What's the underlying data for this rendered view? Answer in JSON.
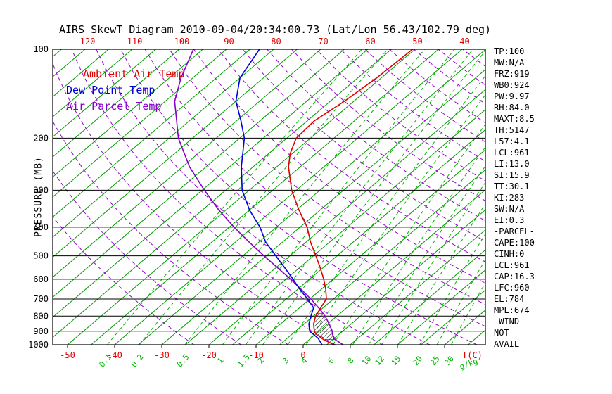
{
  "title": "AIRS SkewT Diagram 2010-09-04/20:34:00.73 (Lat/Lon 56.43/102.79 deg)",
  "legend": {
    "ambient": "Ambient Air Temp",
    "dew": "Dew Point Temp",
    "parcel": "Air Parcel Temp"
  },
  "axes": {
    "pressure_label": "PRESSURE (MB)",
    "pressure_ticks": [
      100,
      200,
      300,
      400,
      500,
      600,
      700,
      800,
      900,
      1000
    ],
    "top_temp_ticks": [
      -120,
      -110,
      -100,
      -90,
      -80,
      -70,
      -60,
      -50,
      -40
    ],
    "bottom_temp_ticks": [
      -50,
      -40,
      -30,
      -20,
      -10,
      0
    ],
    "temp_unit_label": "T(C)",
    "mixing_unit_label": "g/kg"
  },
  "stats": [
    "TP:100",
    "MW:N/A",
    "FRZ:919",
    "WB0:924",
    "PW:9.97",
    "RH:84.0",
    "MAXT:8.5",
    "TH:5147",
    "L57:4.1",
    "LCL:961",
    "LI:13.0",
    "SI:15.9",
    "TT:30.1",
    "KI:283",
    "SW:N/A",
    "EI:0.3",
    "-PARCEL-",
    "CAPE:100",
    "CINH:0",
    "LCL:961",
    "CAP:16.3",
    "LFC:960",
    "EL:784",
    "MPL:674",
    "-WIND-",
    "NOT",
    "AVAIL"
  ],
  "colors": {
    "ambient": "#dd0000",
    "dew": "#0000dd",
    "parcel": "#8800cc",
    "isotherm": "#009c00",
    "mixing": "#00b400",
    "dry_adiabat": "#9400d3",
    "frame": "#000000"
  },
  "chart_data": {
    "type": "line",
    "title": "AIRS SkewT Diagram 2010-09-04/20:34:00.73 (Lat/Lon 56.43/102.79 deg)",
    "y_axis": {
      "label": "PRESSURE (MB)",
      "scale": "log",
      "range": [
        1000,
        100
      ]
    },
    "x_axis": {
      "label": "T(C)",
      "skewed": true,
      "surface_range_C": [
        -53,
        38
      ]
    },
    "isotherm_step_C": 5,
    "dry_adiabat_theta_K": {
      "min": 250,
      "max": 460,
      "step": 10
    },
    "mixing_ratio_lines_g_kg": [
      0.1,
      0.2,
      0.5,
      1,
      1.5,
      2,
      3,
      4,
      6,
      8,
      10,
      12,
      15,
      20,
      25,
      30
    ],
    "cape_hatch_p_range": [
      961,
      784
    ],
    "series": [
      {
        "key": "ambient",
        "name": "Ambient Air Temp",
        "points_p_T": [
          [
            1000,
            6.5
          ],
          [
            960,
            3.0
          ],
          [
            919,
            0.0
          ],
          [
            900,
            -1.0
          ],
          [
            850,
            -3.0
          ],
          [
            800,
            -4.5
          ],
          [
            750,
            -5.5
          ],
          [
            700,
            -6.5
          ],
          [
            650,
            -9.0
          ],
          [
            600,
            -12.0
          ],
          [
            550,
            -15.5
          ],
          [
            500,
            -19.5
          ],
          [
            450,
            -24.0
          ],
          [
            400,
            -28.5
          ],
          [
            350,
            -34.5
          ],
          [
            300,
            -41.0
          ],
          [
            250,
            -47.5
          ],
          [
            225,
            -50.5
          ],
          [
            200,
            -53.0
          ],
          [
            175,
            -53.5
          ],
          [
            150,
            -52.0
          ],
          [
            125,
            -51.0
          ],
          [
            100,
            -50.5
          ]
        ]
      },
      {
        "key": "dew",
        "name": "Dew Point Temp",
        "points_p_T": [
          [
            1000,
            4.0
          ],
          [
            950,
            1.5
          ],
          [
            900,
            -2.0
          ],
          [
            850,
            -4.0
          ],
          [
            800,
            -5.5
          ],
          [
            750,
            -7.0
          ],
          [
            700,
            -10.5
          ],
          [
            650,
            -14.5
          ],
          [
            600,
            -18.5
          ],
          [
            550,
            -23.0
          ],
          [
            500,
            -28.0
          ],
          [
            450,
            -33.5
          ],
          [
            400,
            -38.5
          ],
          [
            350,
            -45.0
          ],
          [
            300,
            -51.5
          ],
          [
            250,
            -57.5
          ],
          [
            200,
            -64.0
          ],
          [
            175,
            -69.0
          ],
          [
            150,
            -75.0
          ],
          [
            125,
            -80.0
          ],
          [
            100,
            -83.0
          ]
        ]
      },
      {
        "key": "parcel",
        "name": "Air Parcel Temp",
        "points_p_T": [
          [
            1000,
            8.5
          ],
          [
            961,
            5.5
          ],
          [
            920,
            3.5
          ],
          [
            900,
            2.8
          ],
          [
            850,
            0.3
          ],
          [
            800,
            -2.5
          ],
          [
            760,
            -5.2
          ],
          [
            720,
            -8.2
          ],
          [
            700,
            -9.8
          ],
          [
            650,
            -14.2
          ],
          [
            600,
            -19.0
          ],
          [
            550,
            -24.5
          ],
          [
            500,
            -30.5
          ],
          [
            450,
            -37.0
          ],
          [
            400,
            -44.0
          ],
          [
            350,
            -51.5
          ],
          [
            300,
            -59.5
          ],
          [
            250,
            -68.5
          ],
          [
            200,
            -78.0
          ],
          [
            150,
            -88.0
          ],
          [
            125,
            -92.5
          ],
          [
            100,
            -97.0
          ]
        ]
      }
    ]
  }
}
